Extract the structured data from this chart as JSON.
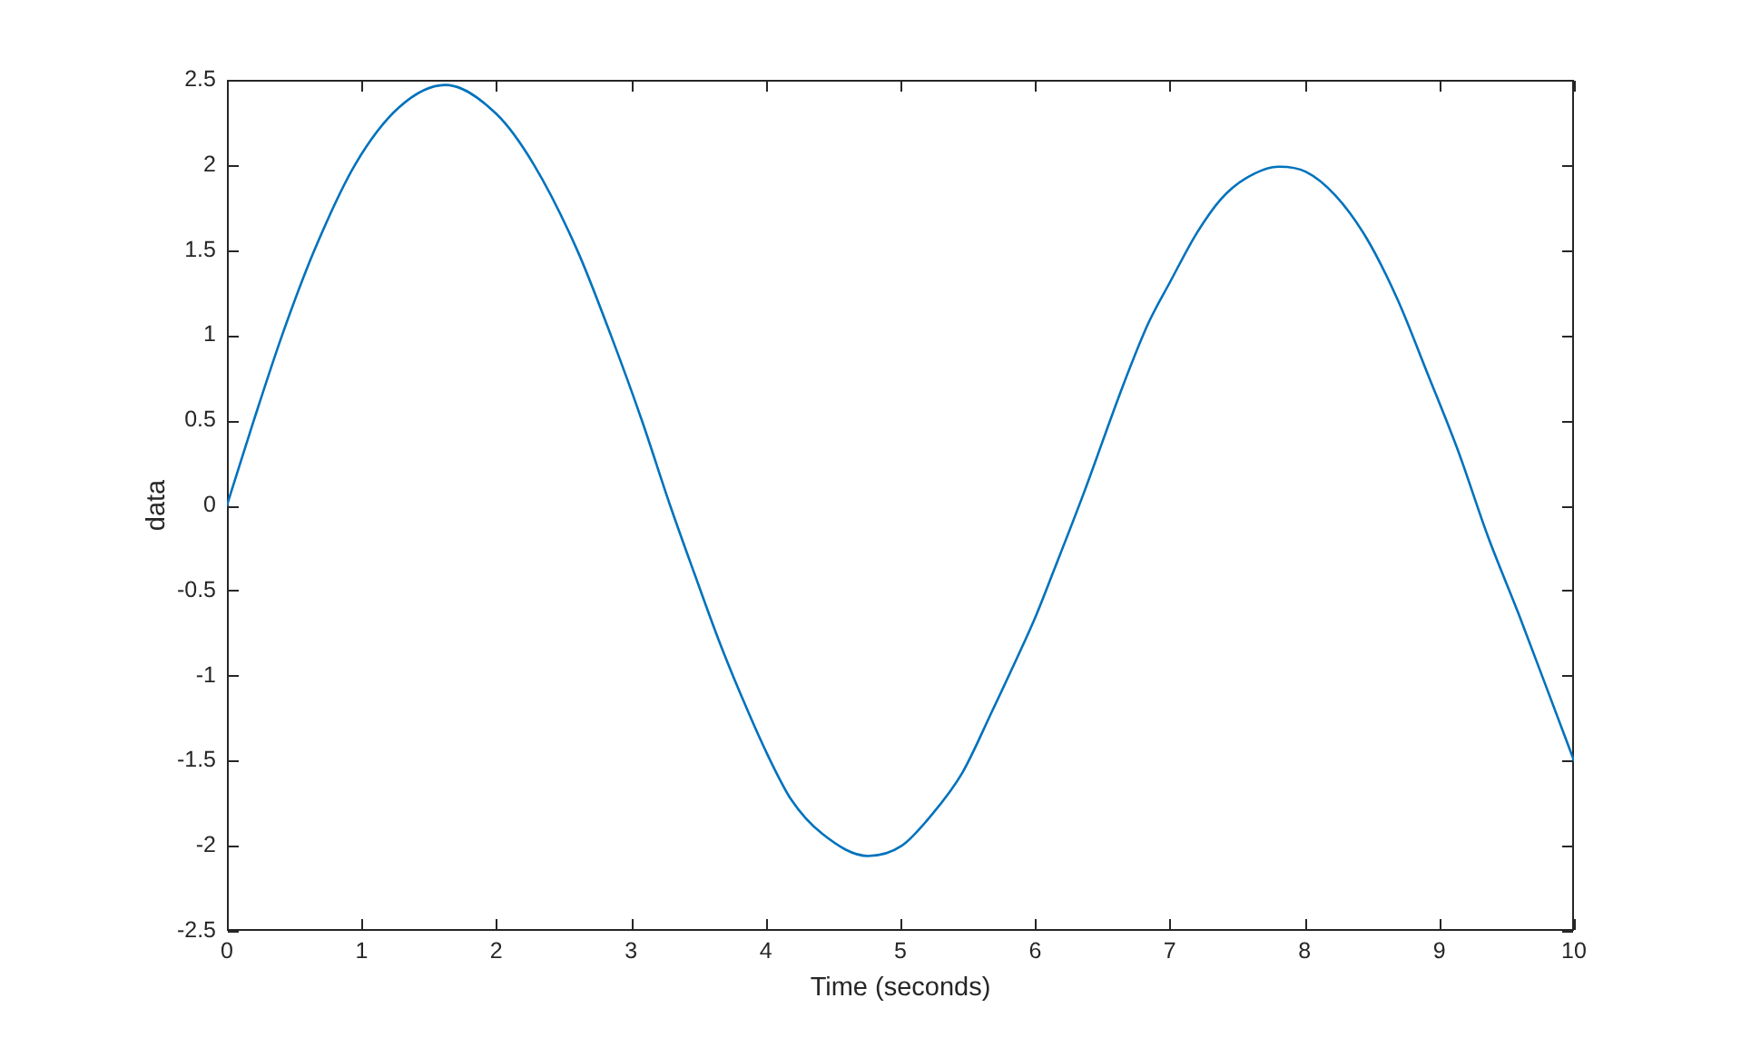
{
  "chart_data": {
    "type": "line",
    "xlabel": "Time (seconds)",
    "ylabel": "data",
    "x": [
      0,
      0.2,
      0.41,
      0.65,
      0.95,
      1.28,
      1.62,
      2.0,
      2.28,
      2.6,
      2.85,
      3.08,
      3.29,
      3.47,
      3.65,
      3.83,
      4.01,
      4.19,
      4.42,
      4.76,
      5.01,
      5.23,
      5.46,
      5.68,
      5.91,
      6.0,
      6.14,
      6.36,
      6.66,
      6.84,
      7.0,
      7.2,
      7.38,
      7.56,
      7.81,
      8.01,
      8.23,
      8.46,
      8.69,
      8.91,
      9.14,
      9.36,
      9.59,
      9.81,
      10
    ],
    "values": [
      0,
      0.5,
      1.0,
      1.5,
      2.0,
      2.34,
      2.47,
      2.3,
      2.0,
      1.5,
      1.0,
      0.5,
      0.0,
      -0.4,
      -0.79,
      -1.14,
      -1.46,
      -1.73,
      -1.93,
      -2.06,
      -2.0,
      -1.82,
      -1.57,
      -1.21,
      -0.82,
      -0.66,
      -0.38,
      0.07,
      0.72,
      1.07,
      1.31,
      1.6,
      1.8,
      1.92,
      1.99,
      1.96,
      1.82,
      1.57,
      1.21,
      0.78,
      0.32,
      -0.18,
      -0.64,
      -1.1,
      -1.5
    ],
    "color": "#0072bd",
    "xlim": [
      0,
      10
    ],
    "ylim": [
      -2.5,
      2.5
    ],
    "xticks": [
      0,
      1,
      2,
      3,
      4,
      5,
      6,
      7,
      8,
      9,
      10
    ],
    "yticks": [
      -2.5,
      -2,
      -1.5,
      -1,
      -0.5,
      0,
      0.5,
      1,
      1.5,
      2,
      2.5
    ],
    "grid": false,
    "legend": false,
    "marker": "none",
    "line_style": "solid"
  }
}
